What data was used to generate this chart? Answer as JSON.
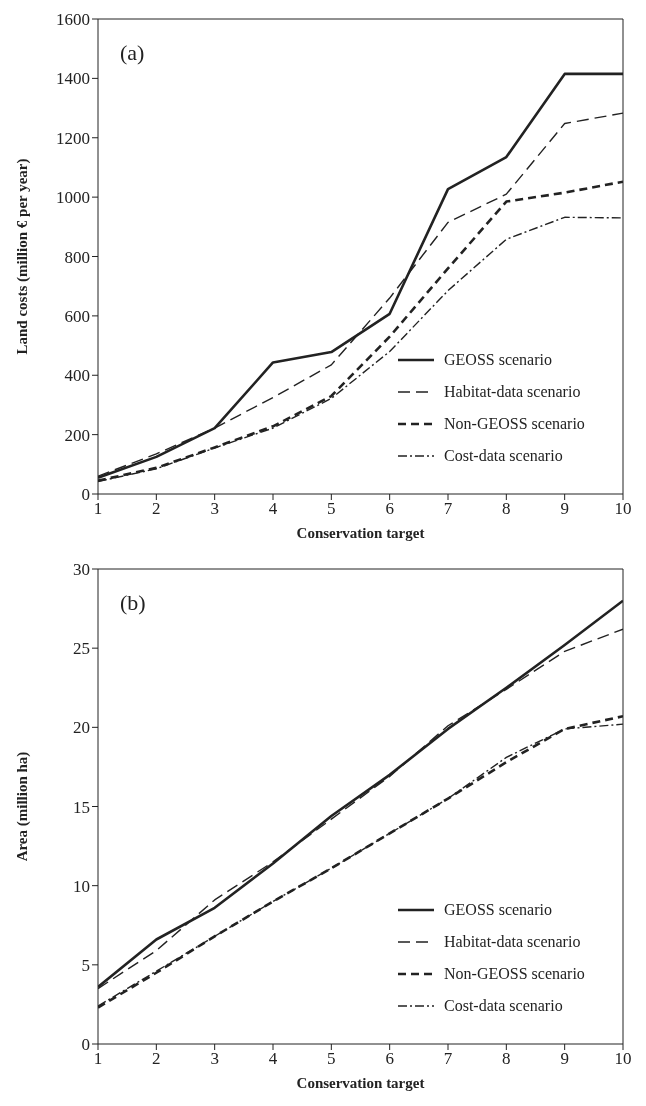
{
  "chart_data": [
    {
      "type": "line",
      "xlabel": "Conservation target",
      "ylabel": "Land costs (million € per year)",
      "annotations": [
        "(a)"
      ],
      "x": [
        1,
        2,
        3,
        4,
        5,
        6,
        7,
        8,
        9,
        10
      ],
      "series": [
        {
          "name": "GEOSS scenario",
          "color": "#222222",
          "line_style": "solid",
          "values": [
            55,
            125,
            222,
            443,
            478,
            607,
            1027,
            1135,
            1415,
            1415
          ]
        },
        {
          "name": "Habitat-data scenario",
          "color": "#222222",
          "line_style": "dashed",
          "values": [
            60,
            135,
            222,
            325,
            435,
            660,
            915,
            1010,
            1248,
            1283
          ]
        },
        {
          "name": "Non-GEOSS scenario",
          "color": "#222222",
          "line_style": "dashed",
          "values": [
            45,
            88,
            157,
            228,
            330,
            530,
            760,
            985,
            1015,
            1052
          ]
        },
        {
          "name": "Cost-data scenario",
          "color": "#222222",
          "line_style": "dashdot",
          "values": [
            42,
            85,
            155,
            222,
            322,
            480,
            685,
            858,
            932,
            930
          ]
        }
      ],
      "xlim": [
        1,
        10
      ],
      "xticks": [
        1,
        2,
        3,
        4,
        5,
        6,
        7,
        8,
        9,
        10
      ],
      "ylim": [
        0,
        1600
      ],
      "yticks": [
        0,
        200,
        400,
        600,
        800,
        1000,
        1200,
        1400,
        1600
      ],
      "grid": false,
      "legend": "bottom right",
      "marker": "none"
    },
    {
      "type": "line",
      "xlabel": "Conservation target",
      "ylabel": "Area (million ha)",
      "annotations": [
        "(b)"
      ],
      "x": [
        1,
        2,
        3,
        4,
        5,
        6,
        7,
        8,
        9,
        10
      ],
      "series": [
        {
          "name": "GEOSS scenario",
          "color": "#222222",
          "line_style": "solid",
          "values": [
            3.6,
            6.6,
            8.6,
            11.4,
            14.4,
            17,
            19.9,
            22.5,
            25.2,
            28
          ]
        },
        {
          "name": "Habitat-data scenario",
          "color": "#222222",
          "line_style": "dashed",
          "values": [
            3.5,
            5.9,
            9.1,
            11.5,
            14.2,
            16.9,
            20.1,
            22.4,
            24.8,
            26.2
          ]
        },
        {
          "name": "Non-GEOSS scenario",
          "color": "#222222",
          "line_style": "dashed",
          "values": [
            2.3,
            4.5,
            6.8,
            9,
            11.1,
            13.3,
            15.5,
            17.8,
            19.9,
            20.7
          ]
        },
        {
          "name": "Cost-data scenario",
          "color": "#222222",
          "line_style": "dashdot",
          "values": [
            2.4,
            4.6,
            6.8,
            9,
            11.1,
            13.3,
            15.5,
            18.1,
            19.9,
            20.2
          ]
        }
      ],
      "xlim": [
        1,
        10
      ],
      "xticks": [
        1,
        2,
        3,
        4,
        5,
        6,
        7,
        8,
        9,
        10
      ],
      "ylim": [
        0,
        30
      ],
      "yticks": [
        0,
        5,
        10,
        15,
        20,
        25,
        30
      ],
      "grid": false,
      "legend": "bottom right",
      "marker": "none"
    }
  ]
}
